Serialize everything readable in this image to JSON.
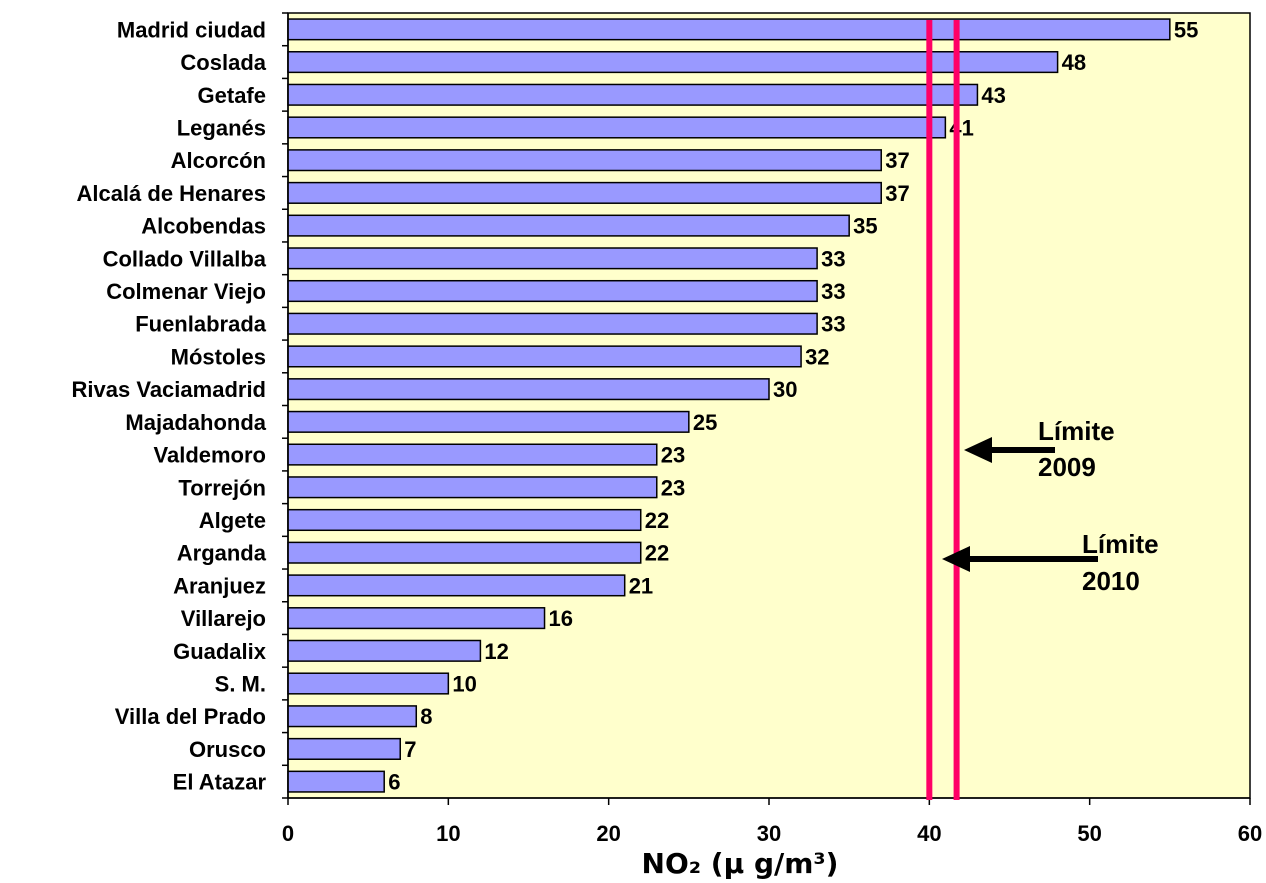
{
  "chart_data": {
    "type": "bar",
    "orientation": "horizontal",
    "categories": [
      "Madrid ciudad",
      "Coslada",
      "Getafe",
      "Leganés",
      "Alcorcón",
      "Alcalá de Henares",
      "Alcobendas",
      "Collado Villalba",
      "Colmenar Viejo",
      "Fuenlabrada",
      "Móstoles",
      "Rivas Vaciamadrid",
      "Majadahonda",
      "Valdemoro",
      "Torrejón",
      "Algete",
      "Arganda",
      "Aranjuez",
      "Villarejo",
      "Guadalix",
      "S. M.",
      "Villa del Prado",
      "Orusco",
      "El Atazar"
    ],
    "values": [
      55,
      48,
      43,
      41,
      37,
      37,
      35,
      33,
      33,
      33,
      32,
      30,
      25,
      23,
      23,
      22,
      22,
      21,
      16,
      12,
      10,
      8,
      7,
      6
    ],
    "xlabel": "NO₂ (µ g/m³)",
    "xlim": [
      0,
      60
    ],
    "xticks": [
      0,
      10,
      20,
      30,
      40,
      50,
      60
    ],
    "grid": false,
    "reference_lines": [
      {
        "x": 41.7,
        "label_line1": "Límite",
        "label_line2": "2009"
      },
      {
        "x": 40,
        "label_line1": "Límite",
        "label_line2": "2010"
      }
    ],
    "colors": {
      "bar_fill": "#9999ff",
      "bar_stroke": "#000000",
      "plot_background": "#ffffcc",
      "reference_line": "#ff0066",
      "arrow": "#000000"
    }
  }
}
